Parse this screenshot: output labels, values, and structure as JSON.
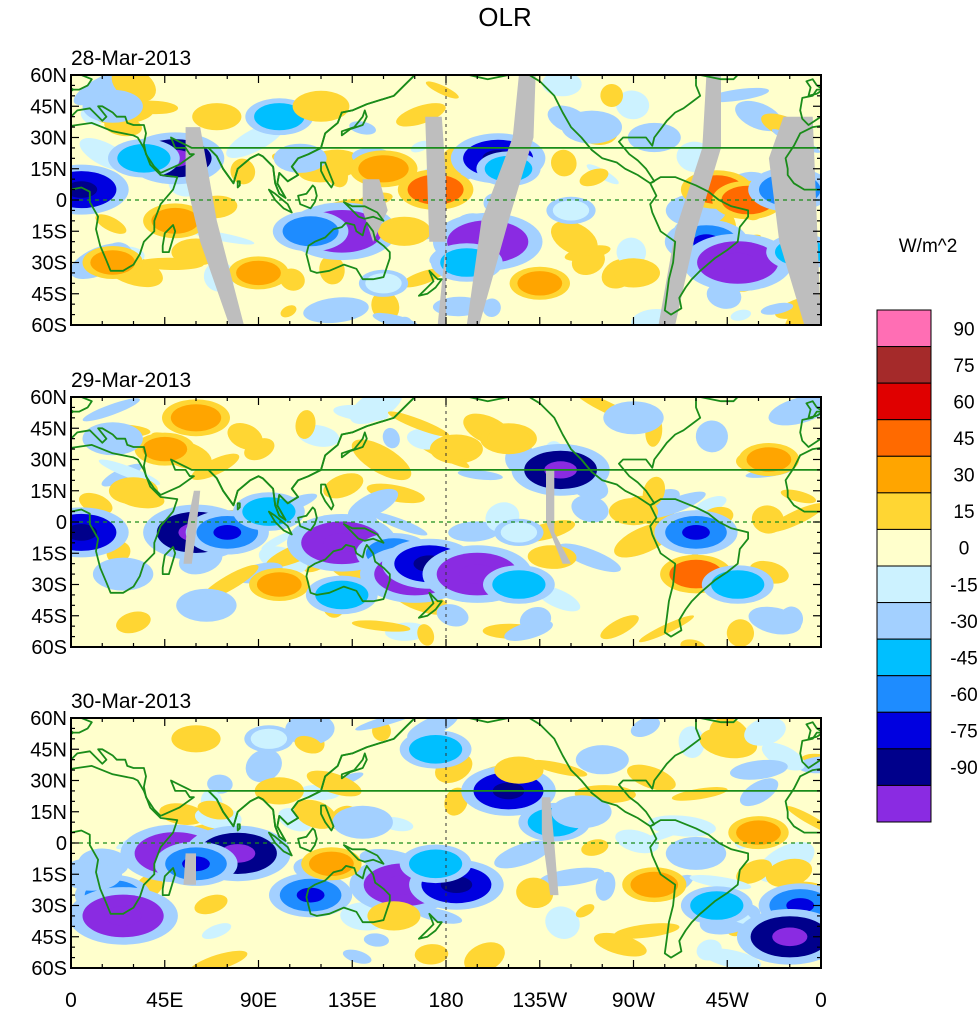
{
  "figure": {
    "title": "OLR"
  },
  "panels": [
    {
      "date": "28-Mar-2013"
    },
    {
      "date": "29-Mar-2013"
    },
    {
      "date": "30-Mar-2013"
    }
  ],
  "axes": {
    "lat_labels": [
      "60N",
      "45N",
      "30N",
      "15N",
      "0",
      "15S",
      "30S",
      "45S",
      "60S"
    ],
    "lon_labels": [
      "0",
      "45E",
      "90E",
      "135E",
      "180",
      "135W",
      "90W",
      "45W",
      "0"
    ]
  },
  "colorbar": {
    "units": "W/m^2",
    "labels": [
      "90",
      "75",
      "60",
      "45",
      "30",
      "15",
      "0",
      "-15",
      "-30",
      "-45",
      "-60",
      "-75",
      "-90"
    ],
    "colors": [
      "#ff6eb4",
      "#a52a2a",
      "#e00000",
      "#ff6a00",
      "#ffa500",
      "#ffd633",
      "#ffffcc",
      "#ccf2ff",
      "#a3d0ff",
      "#00bfff",
      "#1e8cff",
      "#0000e0",
      "#00008b",
      "#8a2be2"
    ]
  },
  "colors": {
    "coastline": "#1a8c1a",
    "missing_data": "#bebebe",
    "equator_line": "#1a8c1a"
  },
  "chart_data": {
    "type": "heatmap",
    "title": "OLR",
    "variable": "OLR anomaly",
    "units": "W/m^2",
    "panels": [
      {
        "date": "28-Mar-2013",
        "cells": [
          [
            50,
            20,
            -80
          ],
          [
            35,
            20,
            -45
          ],
          [
            50,
            -10,
            35
          ],
          [
            100,
            40,
            -40
          ],
          [
            110,
            20,
            -20
          ],
          [
            130,
            -15,
            -95
          ],
          [
            115,
            -15,
            -50
          ],
          [
            150,
            15,
            40
          ],
          [
            175,
            5,
            50
          ],
          [
            160,
            -15,
            20
          ],
          [
            205,
            20,
            -75
          ],
          [
            210,
            15,
            -35
          ],
          [
            200,
            -20,
            -95
          ],
          [
            190,
            -30,
            -45
          ],
          [
            250,
            35,
            -30
          ],
          [
            280,
            30,
            -20
          ],
          [
            300,
            -5,
            -30
          ],
          [
            305,
            -20,
            -60
          ],
          [
            320,
            -30,
            -95
          ],
          [
            310,
            5,
            45
          ],
          [
            325,
            0,
            45
          ],
          [
            20,
            -30,
            30
          ],
          [
            60,
            -25,
            15
          ],
          [
            90,
            -35,
            30
          ],
          [
            225,
            -40,
            30
          ],
          [
            270,
            -35,
            20
          ],
          [
            345,
            5,
            -60
          ],
          [
            5,
            5,
            -75
          ],
          [
            350,
            -25,
            -40
          ],
          [
            120,
            45,
            25
          ],
          [
            70,
            40,
            15
          ],
          [
            240,
            -5,
            -15
          ],
          [
            150,
            -40,
            -15
          ],
          [
            20,
            45,
            -30
          ]
        ]
      },
      {
        "date": "29-Mar-2013",
        "cells": [
          [
            60,
            50,
            40
          ],
          [
            45,
            35,
            30
          ],
          [
            20,
            40,
            -30
          ],
          [
            60,
            -5,
            -90
          ],
          [
            75,
            -5,
            -60
          ],
          [
            95,
            5,
            -45
          ],
          [
            130,
            -10,
            -95
          ],
          [
            155,
            -15,
            -50
          ],
          [
            165,
            -25,
            -95
          ],
          [
            172,
            -20,
            -75
          ],
          [
            195,
            -25,
            -95
          ],
          [
            215,
            -30,
            -45
          ],
          [
            235,
            25,
            -80
          ],
          [
            215,
            -5,
            -15
          ],
          [
            300,
            -5,
            -60
          ],
          [
            300,
            -25,
            45
          ],
          [
            320,
            -30,
            -45
          ],
          [
            25,
            -25,
            -30
          ],
          [
            30,
            15,
            15
          ],
          [
            5,
            -5,
            -75
          ],
          [
            270,
            5,
            15
          ],
          [
            335,
            30,
            30
          ],
          [
            185,
            35,
            20
          ],
          [
            210,
            40,
            25
          ],
          [
            65,
            -40,
            -30
          ],
          [
            100,
            -30,
            30
          ],
          [
            270,
            50,
            -30
          ],
          [
            130,
            -35,
            -45
          ]
        ]
      },
      {
        "date": "30-Mar-2013",
        "cells": [
          [
            50,
            -5,
            -95
          ],
          [
            80,
            -5,
            -90
          ],
          [
            60,
            -10,
            -60
          ],
          [
            20,
            -25,
            -50
          ],
          [
            10,
            -15,
            -30
          ],
          [
            25,
            -35,
            -95
          ],
          [
            115,
            -25,
            -60
          ],
          [
            160,
            -20,
            -95
          ],
          [
            185,
            -20,
            -75
          ],
          [
            175,
            -10,
            -45
          ],
          [
            210,
            25,
            -75
          ],
          [
            232,
            10,
            -45
          ],
          [
            245,
            15,
            -30
          ],
          [
            255,
            40,
            -20
          ],
          [
            300,
            -5,
            -30
          ],
          [
            310,
            -30,
            -45
          ],
          [
            350,
            -30,
            -60
          ],
          [
            345,
            -45,
            -90
          ],
          [
            125,
            -10,
            30
          ],
          [
            100,
            25,
            15
          ],
          [
            175,
            45,
            -45
          ],
          [
            215,
            35,
            15
          ],
          [
            280,
            -20,
            35
          ],
          [
            330,
            5,
            30
          ],
          [
            155,
            -35,
            20
          ],
          [
            60,
            50,
            15
          ],
          [
            95,
            50,
            -15
          ],
          [
            140,
            10,
            -30
          ]
        ]
      }
    ],
    "xlabel": "",
    "ylabel": "",
    "xlim": [
      0,
      360
    ],
    "ylim": [
      -60,
      60
    ],
    "contour_levels": [
      -90,
      -75,
      -60,
      -45,
      -30,
      -15,
      0,
      15,
      30,
      45,
      60,
      75,
      90
    ]
  }
}
